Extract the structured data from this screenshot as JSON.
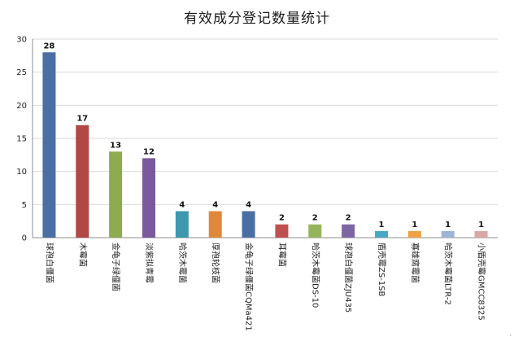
{
  "chart_data": {
    "type": "bar",
    "title": "有效成分登记数量统计",
    "xlabel": "",
    "ylabel": "",
    "ylim": [
      0,
      30
    ],
    "yticks": [
      0,
      5,
      10,
      15,
      20,
      25,
      30
    ],
    "grid": true,
    "legend": "none",
    "categories": [
      "球孢白僵菌",
      "木霉菌",
      "金龟子绿僵菌",
      "淡紫拟青霉",
      "哈茨木霉菌",
      "厚孢轮枝菌",
      "金龟子绿僵菌CQMa421",
      "耳霉菌",
      "哈茨木霉菌DS-10",
      "球孢白僵菌ZJU435",
      "盾壳霉ZS-1SB",
      "寡雄腐霉菌",
      "哈茨木霉菌LTR-2",
      "小盾壳霉GMCC8325"
    ],
    "values": [
      28,
      17,
      13,
      12,
      4,
      4,
      4,
      2,
      2,
      2,
      1,
      1,
      1,
      1
    ],
    "colors": [
      "#4a6fa5",
      "#b04845",
      "#8fab4f",
      "#7a5a9c",
      "#3f98ad",
      "#e0883a",
      "#4a6fa5",
      "#c0504d",
      "#93b45a",
      "#7d67a3",
      "#4aa7c3",
      "#f0a045",
      "#9fb3d6",
      "#d8a8a6"
    ]
  },
  "page_marker": "."
}
